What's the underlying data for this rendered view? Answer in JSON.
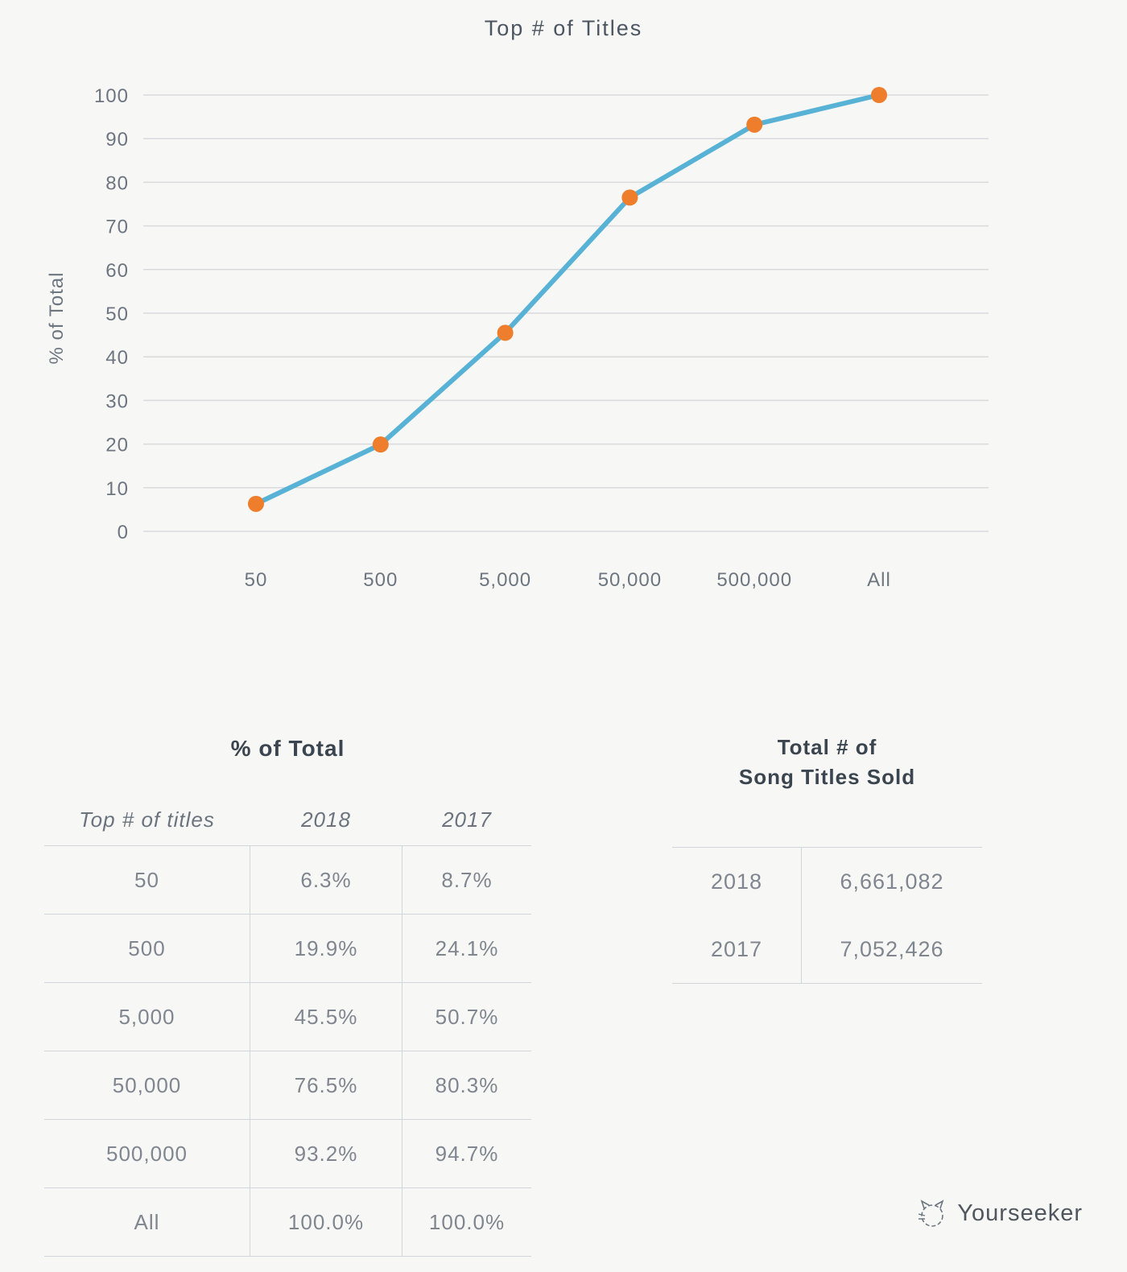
{
  "chart_data": {
    "type": "line",
    "title": "Top # of Titles",
    "xlabel": "",
    "ylabel": "% of Total",
    "categories": [
      "50",
      "500",
      "5,000",
      "50,000",
      "500,000",
      "All"
    ],
    "series": [
      {
        "name": "2018",
        "values": [
          6.3,
          19.9,
          45.5,
          76.5,
          93.2,
          100.0
        ]
      }
    ],
    "ylim": [
      0,
      100
    ],
    "ytick_step": 10,
    "grid": true,
    "legend": "none",
    "line_color": "#57b2d5",
    "marker_color": "#ee7d2c"
  },
  "pct_table": {
    "title": "% of Total",
    "columns": [
      "Top # of titles",
      "2018",
      "2017"
    ],
    "rows": [
      [
        "50",
        "6.3%",
        "8.7%"
      ],
      [
        "500",
        "19.9%",
        "24.1%"
      ],
      [
        "5,000",
        "45.5%",
        "50.7%"
      ],
      [
        "50,000",
        "76.5%",
        "80.3%"
      ],
      [
        "500,000",
        "93.2%",
        "94.7%"
      ],
      [
        "All",
        "100.0%",
        "100.0%"
      ]
    ]
  },
  "totals_table": {
    "title_line1": "Total # of",
    "title_line2": "Song Titles Sold",
    "rows": [
      [
        "2018",
        "6,661,082"
      ],
      [
        "2017",
        "7,052,426"
      ]
    ]
  },
  "footer": {
    "brand": "Yourseeker",
    "logo_icon": "sketch-cat-icon"
  }
}
